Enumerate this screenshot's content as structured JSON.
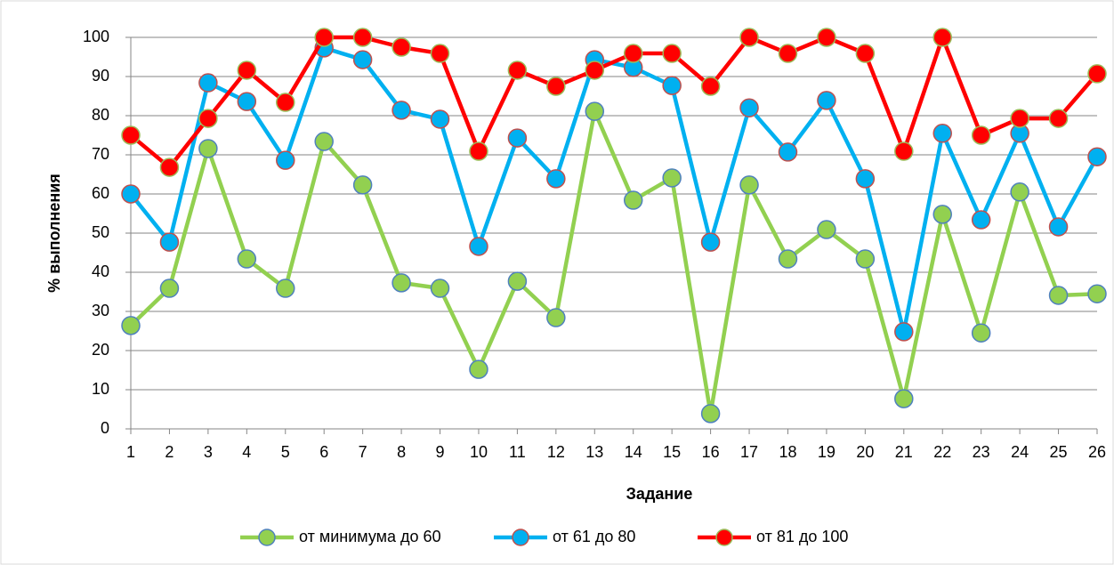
{
  "chart_data": {
    "type": "line",
    "xlabel": "Задание",
    "ylabel": "% выполнения",
    "categories": [
      "1",
      "2",
      "3",
      "4",
      "5",
      "6",
      "7",
      "8",
      "9",
      "10",
      "11",
      "12",
      "13",
      "14",
      "15",
      "16",
      "17",
      "18",
      "19",
      "20",
      "21",
      "22",
      "23",
      "24",
      "25",
      "26"
    ],
    "series": [
      {
        "name": "от минимума до 60",
        "color": "#92d050",
        "marker_edge": "#4f81bd",
        "values": [
          26.4,
          35.9,
          71.6,
          43.4,
          35.9,
          73.4,
          62.3,
          37.3,
          35.9,
          15.2,
          37.7,
          28.4,
          81.1,
          58.4,
          64.1,
          3.9,
          62.3,
          43.4,
          50.9,
          43.4,
          7.7,
          54.8,
          24.5,
          60.5,
          34.1,
          34.5
        ]
      },
      {
        "name": "от 61 до 80",
        "color": "#00b0f0",
        "marker_edge": "#c0504d",
        "values": [
          60,
          47.7,
          88.4,
          83.6,
          68.6,
          97.3,
          94.3,
          81.4,
          79.1,
          46.6,
          74.3,
          63.9,
          94.3,
          92.3,
          87.7,
          47.7,
          82,
          70.7,
          83.9,
          63.9,
          24.8,
          75.5,
          53.4,
          75.5,
          51.6,
          69.5
        ]
      },
      {
        "name": "от 81 до 100",
        "color": "#ff0000",
        "marker_edge": "#9bbb59",
        "values": [
          75,
          66.8,
          79.3,
          91.6,
          83.4,
          100,
          100,
          97.5,
          95.9,
          70.9,
          91.6,
          87.5,
          91.6,
          95.9,
          95.9,
          87.5,
          100,
          95.9,
          100,
          95.9,
          70.9,
          100,
          75,
          79.3,
          79.3,
          90.7
        ]
      }
    ],
    "ylim": [
      0,
      100
    ],
    "yticks": [
      0,
      10,
      20,
      30,
      40,
      50,
      60,
      70,
      80,
      90,
      100
    ],
    "grid": true,
    "legend": "bottom"
  }
}
